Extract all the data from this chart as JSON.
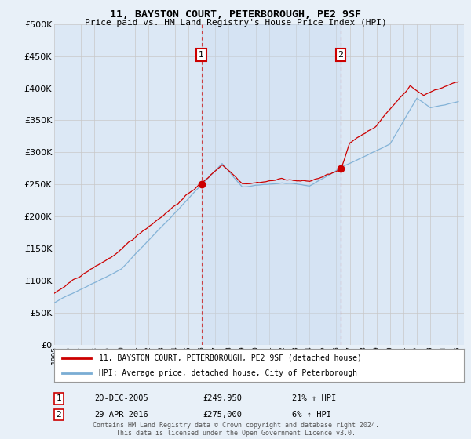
{
  "title": "11, BAYSTON COURT, PETERBOROUGH, PE2 9SF",
  "subtitle": "Price paid vs. HM Land Registry's House Price Index (HPI)",
  "legend_line1": "11, BAYSTON COURT, PETERBOROUGH, PE2 9SF (detached house)",
  "legend_line2": "HPI: Average price, detached house, City of Peterborough",
  "footnote": "Contains HM Land Registry data © Crown copyright and database right 2024.\nThis data is licensed under the Open Government Licence v3.0.",
  "sale1_date": "20-DEC-2005",
  "sale1_price": "£249,950",
  "sale1_hpi": "21% ↑ HPI",
  "sale1_year": 2005.97,
  "sale1_value": 249950,
  "sale2_date": "29-APR-2016",
  "sale2_price": "£275,000",
  "sale2_hpi": "6% ↑ HPI",
  "sale2_year": 2016.33,
  "sale2_value": 275000,
  "xmin": 1995,
  "xmax": 2025.5,
  "ymin": 0,
  "ymax": 500000,
  "yticks": [
    0,
    50000,
    100000,
    150000,
    200000,
    250000,
    300000,
    350000,
    400000,
    450000,
    500000
  ],
  "background_color": "#e8f0f8",
  "plot_bg": "#dce8f5",
  "shade_color": "#c8daf0",
  "red_color": "#cc0000",
  "blue_color": "#7aadd4",
  "grid_color": "#c8c8c8",
  "marker_box_color": "#cc0000"
}
